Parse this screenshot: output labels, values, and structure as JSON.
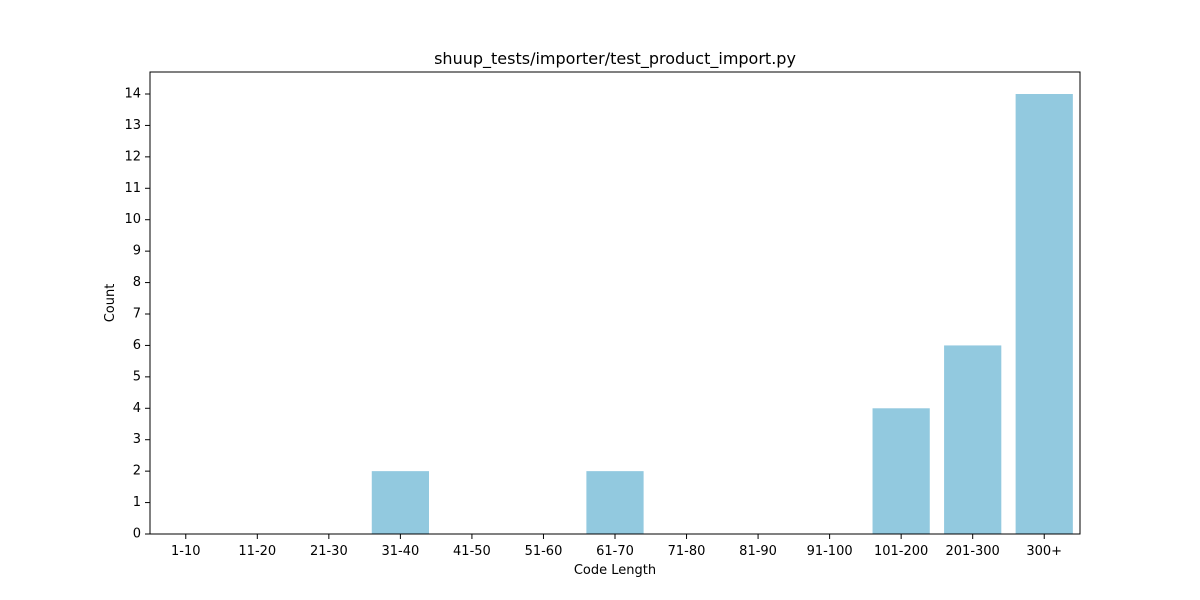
{
  "chart_data": {
    "type": "bar",
    "title": "shuup_tests/importer/test_product_import.py",
    "xlabel": "Code Length",
    "ylabel": "Count",
    "categories": [
      "1-10",
      "11-20",
      "21-30",
      "31-40",
      "41-50",
      "51-60",
      "61-70",
      "71-80",
      "81-90",
      "91-100",
      "101-200",
      "201-300",
      "300+"
    ],
    "values": [
      0,
      0,
      0,
      2,
      0,
      0,
      2,
      0,
      0,
      0,
      4,
      6,
      14
    ],
    "ylim": [
      0,
      14.7
    ],
    "yticks": [
      0,
      1,
      2,
      3,
      4,
      5,
      6,
      7,
      8,
      9,
      10,
      11,
      12,
      13,
      14
    ],
    "grid": false,
    "bar_color": "#92c9df"
  }
}
